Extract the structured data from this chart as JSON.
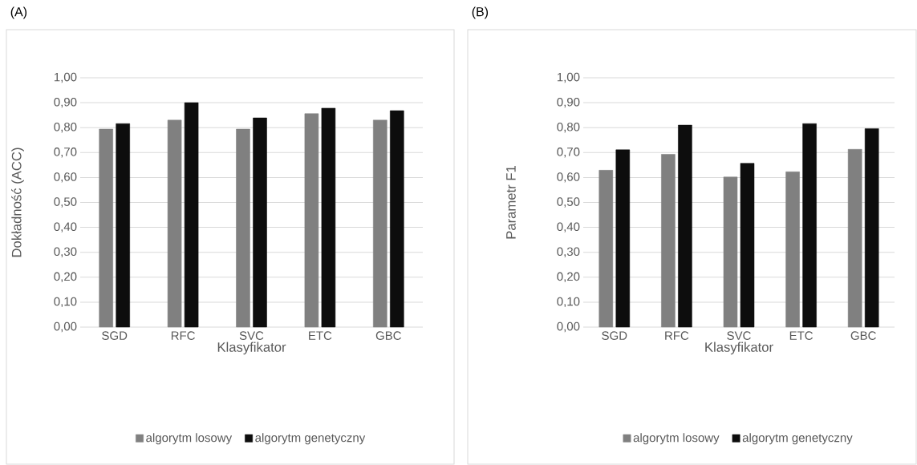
{
  "chart_data": [
    {
      "type": "bar",
      "title": "(A)",
      "categories": [
        "SGD",
        "RFC",
        "SVC",
        "ETC",
        "GBC"
      ],
      "xlabel": "Klasyfikator",
      "ylabel": "Dokładność (ACC)",
      "series": [
        {
          "name": "algorytm losowy",
          "color": "#808080",
          "values": [
            0.794,
            0.83,
            0.794,
            0.856,
            0.83
          ]
        },
        {
          "name": "algorytm genetyczny",
          "color": "#0d0d0d",
          "values": [
            0.816,
            0.9,
            0.839,
            0.878,
            0.868
          ]
        }
      ],
      "ylim": [
        0,
        1
      ],
      "yticks": [
        {
          "value": 0,
          "label": "0,00"
        },
        {
          "value": 0.1,
          "label": "0,10"
        },
        {
          "value": 0.2,
          "label": "0,20"
        },
        {
          "value": 0.3,
          "label": "0,30"
        },
        {
          "value": 0.4,
          "label": "0,40"
        },
        {
          "value": 0.5,
          "label": "0,50"
        },
        {
          "value": 0.6,
          "label": "0,60"
        },
        {
          "value": 0.7,
          "label": "0,70"
        },
        {
          "value": 0.8,
          "label": "0,80"
        },
        {
          "value": 0.9,
          "label": "0,90"
        },
        {
          "value": 1,
          "label": "1,00"
        }
      ],
      "grid": "y",
      "legend": "bottom"
    },
    {
      "type": "bar",
      "title": "(B)",
      "categories": [
        "SGD",
        "RFC",
        "SVC",
        "ETC",
        "GBC"
      ],
      "xlabel": "Klasyfikator",
      "ylabel": "Parametr F1",
      "series": [
        {
          "name": "algorytm losowy",
          "color": "#808080",
          "values": [
            0.629,
            0.693,
            0.602,
            0.623,
            0.713
          ]
        },
        {
          "name": "algorytm genetyczny",
          "color": "#0d0d0d",
          "values": [
            0.711,
            0.81,
            0.657,
            0.816,
            0.796
          ]
        }
      ],
      "ylim": [
        0,
        1
      ],
      "yticks": [
        {
          "value": 0,
          "label": "0,00"
        },
        {
          "value": 0.1,
          "label": "0,10"
        },
        {
          "value": 0.2,
          "label": "0,20"
        },
        {
          "value": 0.3,
          "label": "0,30"
        },
        {
          "value": 0.4,
          "label": "0,40"
        },
        {
          "value": 0.5,
          "label": "0,50"
        },
        {
          "value": 0.6,
          "label": "0,60"
        },
        {
          "value": 0.7,
          "label": "0,70"
        },
        {
          "value": 0.8,
          "label": "0,80"
        },
        {
          "value": 0.9,
          "label": "0,90"
        },
        {
          "value": 1,
          "label": "1,00"
        }
      ],
      "grid": "y",
      "legend": "bottom"
    }
  ]
}
